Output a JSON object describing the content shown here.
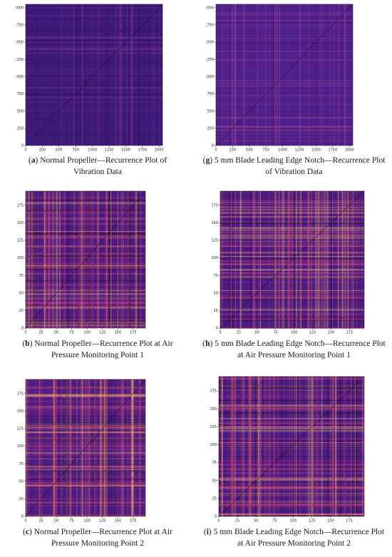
{
  "figures": [
    {
      "id": "a",
      "letter": "a",
      "caption_line1": ") Normal Propeller—Recurrence Plot of",
      "caption_line2": "Vibration Data",
      "xticks": [
        "0",
        "250",
        "500",
        "750",
        "1000",
        "1250",
        "1500",
        "1750",
        "2000"
      ],
      "yticks": [
        "0",
        "250",
        "500",
        "750",
        "1000",
        "1250",
        "1500",
        "1750",
        "2000"
      ],
      "palette": "magma-dark"
    },
    {
      "id": "g",
      "letter": "g",
      "caption_line1": ") 5 mm Blade Leading Edge Notch—Recurrence Plot",
      "caption_line2": "of Vibration Data",
      "xticks": [
        "0",
        "250",
        "500",
        "750",
        "1000",
        "1250",
        "1500",
        "1750",
        "2000"
      ],
      "yticks": [
        "0",
        "250",
        "500",
        "750",
        "1000",
        "1250",
        "1500",
        "1750",
        "2000"
      ],
      "palette": "magma-soft"
    },
    {
      "id": "b",
      "letter": "b",
      "caption_line1": ") Normal Propeller—Recurrence Plot at Air",
      "caption_line2": "Pressure Monitoring Point 1",
      "xticks": [
        "0",
        "25",
        "50",
        "75",
        "100",
        "125",
        "150",
        "175"
      ],
      "yticks": [
        "0",
        "25",
        "50",
        "75",
        "100",
        "125",
        "150",
        "175"
      ],
      "palette": "magma-bright"
    },
    {
      "id": "h",
      "letter": "h",
      "caption_line1": ") 5 mm Blade Leading Edge Notch—Recurrence Plot",
      "caption_line2": "at Air Pressure Monitoring Point 1",
      "xticks": [
        "0",
        "25",
        "50",
        "75",
        "100",
        "125",
        "150",
        "175"
      ],
      "yticks": [
        "0",
        "25",
        "50",
        "75",
        "100",
        "125",
        "150",
        "175"
      ],
      "palette": "magma-bright"
    },
    {
      "id": "c",
      "letter": "c",
      "caption_line1": ") Normal Propeller—Recurrence Plot at Air",
      "caption_line2": "Pressure Monitoring Point 2",
      "xticks": [
        "0",
        "25",
        "50",
        "75",
        "100",
        "125",
        "150",
        "175"
      ],
      "yticks": [
        "0",
        "25",
        "50",
        "75",
        "100",
        "125",
        "150",
        "175"
      ],
      "palette": "magma-bright"
    },
    {
      "id": "i",
      "letter": "i",
      "caption_line1": ") 5 mm Blade Leading Edge Notch—Recurrence Plot",
      "caption_line2": "at Air Pressure Monitoring Point 2",
      "xticks": [
        "0",
        "25",
        "50",
        "75",
        "100",
        "125",
        "150",
        "175"
      ],
      "yticks": [
        "0",
        "25",
        "50",
        "75",
        "100",
        "125",
        "150",
        "175"
      ],
      "palette": "magma-bright"
    }
  ]
}
